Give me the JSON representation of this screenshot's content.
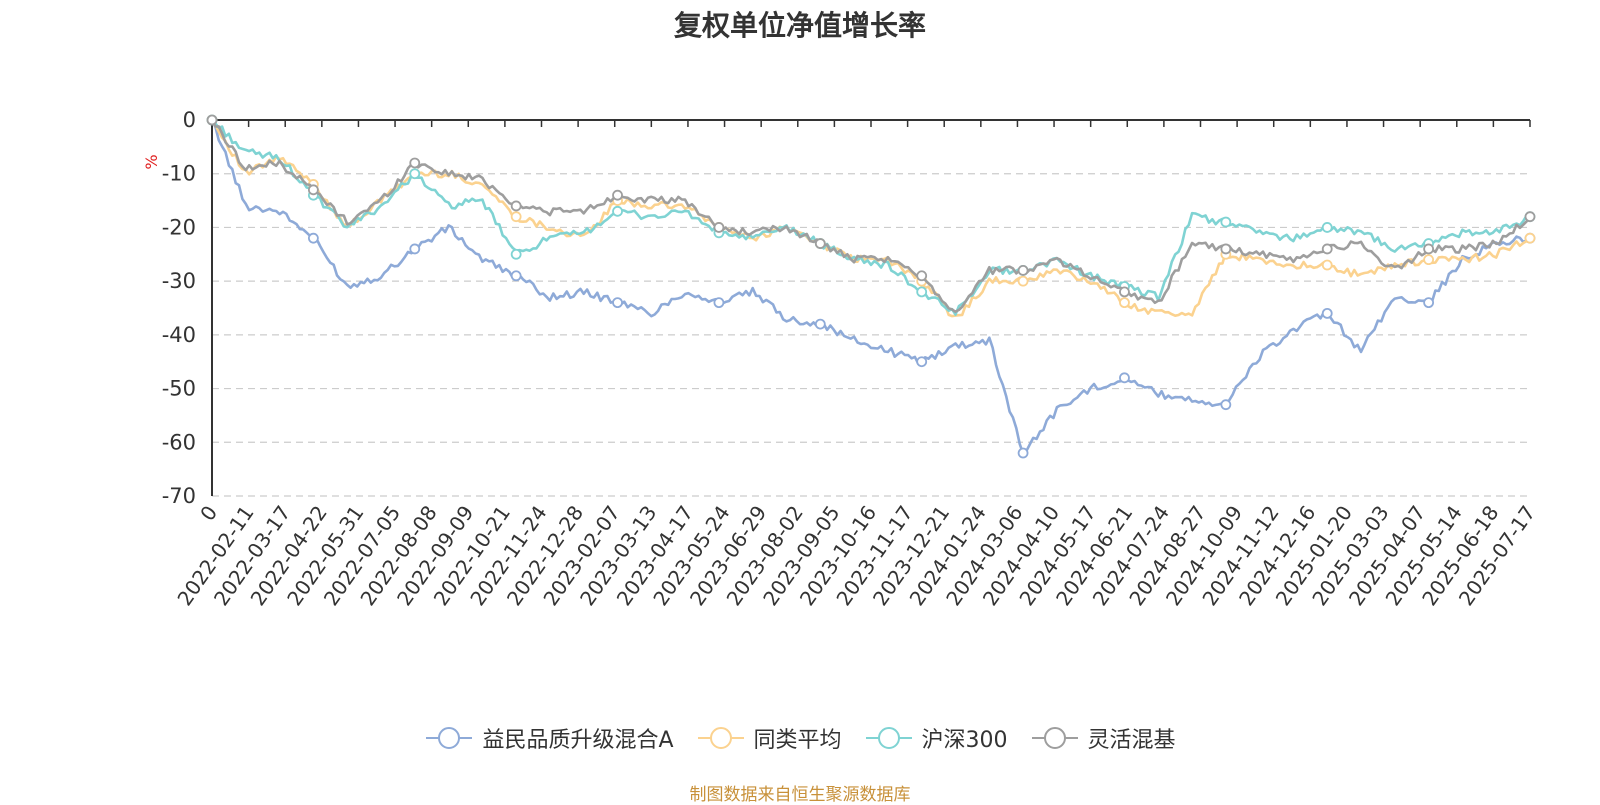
{
  "chart_data": {
    "type": "line",
    "title": "复权单位净值增长率",
    "ylabel": "%",
    "ylim": [
      -70,
      0
    ],
    "yticks": [
      0,
      -10,
      -20,
      -30,
      -40,
      -50,
      -60,
      -70
    ],
    "grid": true,
    "legend_position": "bottom",
    "source_note": "制图数据来自恒生聚源数据库",
    "xticks": [
      "0",
      "2022-02-11",
      "2022-03-17",
      "2022-04-22",
      "2022-05-31",
      "2022-07-05",
      "2022-08-08",
      "2022-09-09",
      "2022-10-21",
      "2022-11-24",
      "2022-12-28",
      "2023-02-07",
      "2023-03-13",
      "2023-04-17",
      "2023-05-24",
      "2023-06-29",
      "2023-08-02",
      "2023-09-05",
      "2023-10-16",
      "2023-11-17",
      "2023-12-21",
      "2024-01-24",
      "2024-03-06",
      "2024-04-10",
      "2024-05-17",
      "2024-06-21",
      "2024-07-24",
      "2024-08-27",
      "2024-10-09",
      "2024-11-12",
      "2024-12-16",
      "2025-01-20",
      "2025-03-03",
      "2025-04-07",
      "2025-05-14",
      "2025-06-18",
      "2025-07-17"
    ],
    "series": [
      {
        "name": "益民品质升级混合A",
        "color": "#8eaad8",
        "values": [
          0,
          -16,
          -17,
          -22,
          -31,
          -29,
          -24,
          -20,
          -26,
          -29,
          -33,
          -32,
          -34,
          -36,
          -32,
          -34,
          -32,
          -37,
          -38,
          -41,
          -43,
          -45,
          -42,
          -41,
          -62,
          -54,
          -50,
          -48,
          -51,
          -52,
          -53,
          -44,
          -39,
          -36,
          -43,
          -33,
          -34,
          -26,
          -23,
          -22
        ]
      },
      {
        "name": "同类平均",
        "color": "#fbd28f",
        "values": [
          0,
          -10,
          -7,
          -12,
          -20,
          -15,
          -10,
          -10,
          -12,
          -18,
          -20,
          -22,
          -15,
          -16,
          -16,
          -20,
          -22,
          -20,
          -23,
          -26,
          -26,
          -30,
          -37,
          -30,
          -30,
          -28,
          -30,
          -34,
          -36,
          -36,
          -25,
          -26,
          -27,
          -27,
          -29,
          -27,
          -26,
          -26,
          -25,
          -22
        ]
      },
      {
        "name": "沪深300",
        "color": "#7fd3d3",
        "values": [
          0,
          -6,
          -7,
          -14,
          -20,
          -16,
          -10,
          -16,
          -15,
          -25,
          -22,
          -21,
          -17,
          -18,
          -17,
          -21,
          -22,
          -20,
          -23,
          -26,
          -27,
          -32,
          -36,
          -28,
          -28,
          -26,
          -29,
          -31,
          -33,
          -18,
          -19,
          -21,
          -22,
          -20,
          -21,
          -24,
          -23,
          -21,
          -21,
          -18
        ]
      },
      {
        "name": "灵活混基",
        "color": "#9e9e9e",
        "values": [
          0,
          -9,
          -8,
          -13,
          -19,
          -15,
          -8,
          -10,
          -11,
          -16,
          -17,
          -17,
          -14,
          -15,
          -15,
          -20,
          -21,
          -20,
          -23,
          -26,
          -26,
          -29,
          -36,
          -28,
          -28,
          -26,
          -29,
          -32,
          -34,
          -23,
          -24,
          -25,
          -26,
          -24,
          -23,
          -28,
          -24,
          -24,
          -23,
          -18
        ]
      }
    ]
  }
}
